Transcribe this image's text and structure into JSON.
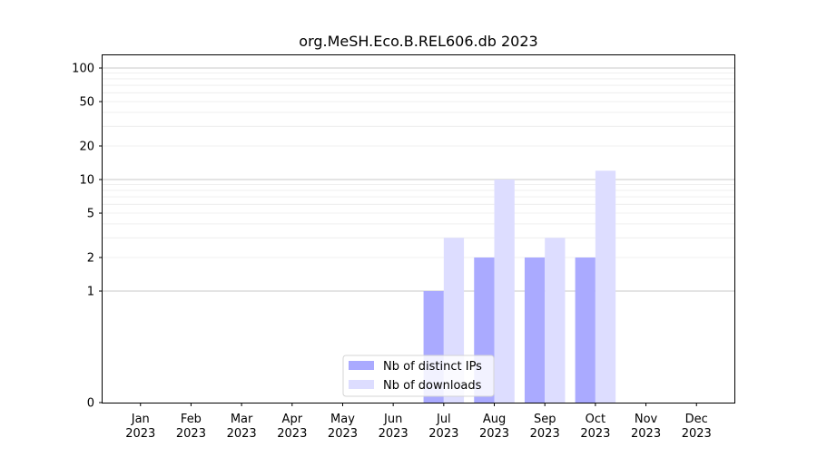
{
  "chart_data": {
    "type": "bar",
    "title": "org.MeSH.Eco.B.REL606.db 2023",
    "xlabel": "",
    "ylabel": "",
    "y_scale": "symlog",
    "y_ticks": [
      0,
      1,
      2,
      5,
      10,
      20,
      50,
      100
    ],
    "ylim": [
      0,
      130
    ],
    "grid": true,
    "legend_position": "bottom-center",
    "categories": [
      {
        "month": "Jan",
        "year": "2023"
      },
      {
        "month": "Feb",
        "year": "2023"
      },
      {
        "month": "Mar",
        "year": "2023"
      },
      {
        "month": "Apr",
        "year": "2023"
      },
      {
        "month": "May",
        "year": "2023"
      },
      {
        "month": "Jun",
        "year": "2023"
      },
      {
        "month": "Jul",
        "year": "2023"
      },
      {
        "month": "Aug",
        "year": "2023"
      },
      {
        "month": "Sep",
        "year": "2023"
      },
      {
        "month": "Oct",
        "year": "2023"
      },
      {
        "month": "Nov",
        "year": "2023"
      },
      {
        "month": "Dec",
        "year": "2023"
      }
    ],
    "series": [
      {
        "name": "Nb of distinct IPs",
        "color": "#aaaaff",
        "values": [
          0,
          0,
          0,
          0,
          0,
          0,
          1,
          2,
          2,
          2,
          0,
          0
        ]
      },
      {
        "name": "Nb of downloads",
        "color": "#ddddff",
        "values": [
          0,
          0,
          0,
          0,
          0,
          0,
          3,
          10,
          3,
          12,
          0,
          0
        ]
      }
    ]
  }
}
